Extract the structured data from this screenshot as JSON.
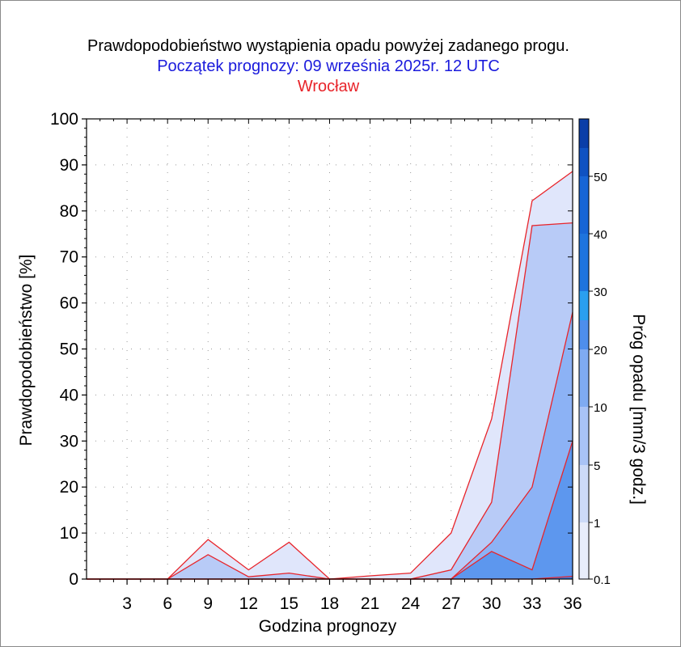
{
  "chart_data": {
    "type": "area",
    "title": "Prawdopodobieństwo wystąpienia opadu powyżej zadanego progu.",
    "subtitle": "Początek prognozy: 09 września 2025r. 12 UTC",
    "location": "Wrocław",
    "xlabel": "Godzina prognozy",
    "ylabel": "Prawdopodobieństwo [%]",
    "x": [
      0,
      3,
      6,
      9,
      12,
      15,
      18,
      21,
      24,
      27,
      30,
      33,
      36
    ],
    "xticks": [
      "3",
      "6",
      "9",
      "12",
      "15",
      "18",
      "21",
      "24",
      "27",
      "30",
      "33",
      "36"
    ],
    "xlim": [
      0,
      36
    ],
    "ylim": [
      0,
      100
    ],
    "yticks": [
      "0",
      "10",
      "20",
      "30",
      "40",
      "50",
      "60",
      "70",
      "80",
      "90",
      "100"
    ],
    "grid": true,
    "series": [
      {
        "threshold": 0.1,
        "color": "#e0e6fb",
        "values": [
          0,
          0,
          0,
          8.6,
          2,
          8,
          0,
          0.7,
          1.3,
          10,
          34.8,
          82.2,
          88.6
        ]
      },
      {
        "threshold": 1,
        "color": "#b8cbf7",
        "values": [
          0,
          0,
          0,
          5.3,
          0.5,
          1.3,
          0,
          0,
          0,
          2,
          16.7,
          76.8,
          77.4
        ]
      },
      {
        "threshold": 5,
        "color": "#8cb2f5",
        "values": [
          0,
          0,
          0,
          0,
          0,
          0,
          0,
          0,
          0,
          0,
          8,
          20,
          58
        ]
      },
      {
        "threshold": 10,
        "color": "#5d97ee",
        "values": [
          0,
          0,
          0,
          0,
          0,
          0,
          0,
          0,
          0,
          0,
          6,
          2,
          30
        ]
      },
      {
        "threshold": 20,
        "color": "#3d7ee6",
        "values": [
          0,
          0,
          0,
          0,
          0,
          0,
          0,
          0,
          0,
          0,
          0,
          0,
          0.6
        ]
      }
    ],
    "line_color": "#e8242a",
    "colorbar": {
      "label": "Próg opadu [mm/3 godz.]",
      "ticks": [
        "0.1",
        "1",
        "5",
        "10",
        "20",
        "30",
        "40",
        "50"
      ],
      "colors": [
        "#e8edfb",
        "#ccdaf8",
        "#a9c3f6",
        "#7fabf2",
        "#4e8eec",
        "#2a9ff0",
        "#1e74de",
        "#1765d6",
        "#0f52c2",
        "#0a3ea8"
      ]
    }
  }
}
